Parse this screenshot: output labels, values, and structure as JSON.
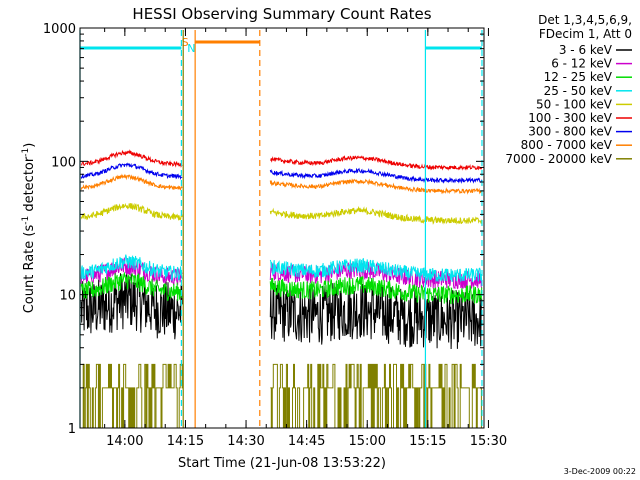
{
  "chart_data": {
    "type": "line",
    "title": "HESSI Observing Summary Count Rates",
    "xlabel": "Start Time (21-Jun-08 13:53:22)",
    "ylabel": "Count Rate (s⁻¹ detector⁻¹)",
    "ylabel_base": "Count Rate (s",
    "ylabel_sup1": "-1",
    "ylabel_mid": " detector",
    "ylabel_sup2": "-1",
    "ylabel_end": ")",
    "yscale": "log",
    "ylim": [
      1,
      1000
    ],
    "xlim_minutes": [
      -4.5,
      95.5
    ],
    "x_ticks": [
      "14:00",
      "14:15",
      "14:30",
      "14:45",
      "15:00",
      "15:15",
      "15:30"
    ],
    "x_tick_minutes": [
      6.6,
      21.6,
      36.6,
      51.6,
      66.6,
      81.6,
      96.6
    ],
    "y_ticks": [
      "1",
      "10",
      "100",
      "1000"
    ],
    "y_tick_values": [
      1,
      10,
      100,
      1000
    ],
    "legend_header": [
      "Det 1,3,4,5,6,9,",
      "FDecim 1, Att 0"
    ],
    "series": [
      {
        "name": "3 - 6 keV",
        "color": "#000000",
        "level_a": 7.5,
        "level_b": 6.5,
        "noise": 0.45
      },
      {
        "name": "6 - 12 keV",
        "color": "#cc00cc",
        "level_a": 13.5,
        "level_b": 13.0,
        "noise": 0.14
      },
      {
        "name": "12 - 25 keV",
        "color": "#00dd00",
        "level_a": 10.5,
        "level_b": 10.0,
        "noise": 0.14
      },
      {
        "name": "25 - 50 keV",
        "color": "#00e5ee",
        "level_a": 14.5,
        "level_b": 14.0,
        "noise": 0.11
      },
      {
        "name": "50 - 100 keV",
        "color": "#cccc00",
        "level_a": 38,
        "level_b": 36,
        "noise": 0.05
      },
      {
        "name": "100 - 300 keV",
        "color": "#ee0000",
        "level_a": 95,
        "level_b": 90,
        "noise": 0.03
      },
      {
        "name": "300 - 800 keV",
        "color": "#0000ee",
        "level_a": 77,
        "level_b": 72,
        "noise": 0.03
      },
      {
        "name": "800 - 7000 keV",
        "color": "#ff7f00",
        "level_a": 63,
        "level_b": 60,
        "noise": 0.03
      },
      {
        "name": "7000 - 20000 keV",
        "color": "#808000",
        "level_a": 2,
        "level_b": 2,
        "noise": 0
      }
    ],
    "gap_minutes": [
      20.8,
      42.6
    ],
    "night_markers_minutes": [
      -4.5,
      81.0
    ],
    "night_end_minutes": [
      20.6,
      95.0
    ],
    "night_label": "N",
    "saa_start_minutes": 24.0,
    "saa_end_minutes": 40.0,
    "saa_label": "S",
    "colors": {
      "night": "#00e5ee",
      "saa": "#ff7f00",
      "attenuator": "#808000"
    }
  },
  "footer_date": "3-Dec-2009 00:22"
}
